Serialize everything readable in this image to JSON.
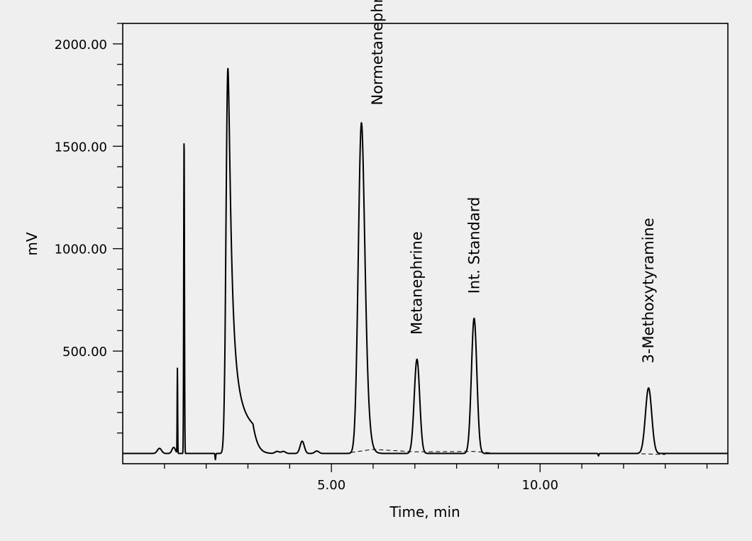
{
  "chart_data": {
    "type": "line",
    "title": "",
    "xlabel": "Time, min",
    "ylabel": "mV",
    "xlim": [
      0,
      14.5
    ],
    "ylim": [
      -50,
      2100
    ],
    "x_ticks": [
      {
        "value": 5,
        "label": "5.00"
      },
      {
        "value": 10,
        "label": "10.00"
      }
    ],
    "y_ticks": [
      {
        "value": 500,
        "label": "500.00"
      },
      {
        "value": 1000,
        "label": "1000.00"
      },
      {
        "value": 1500,
        "label": "1500.00"
      },
      {
        "value": 2000,
        "label": "2000.00"
      }
    ],
    "x_minor_step": 1,
    "y_minor_step": 100,
    "grid": false,
    "series": [
      {
        "style": "solid",
        "baseline": [
          [
            0,
            0
          ],
          [
            14.5,
            0
          ]
        ],
        "peaks": [
          {
            "t": 0.88,
            "h": 25,
            "w": 0.05
          },
          {
            "t": 1.22,
            "h": 30,
            "w": 0.04
          },
          {
            "t": 1.31,
            "h": 415,
            "w": 0.006
          },
          {
            "t": 1.47,
            "h": 1545,
            "w": 0.009
          },
          {
            "t": 2.22,
            "h": -30,
            "w": 0.008
          },
          {
            "t": 2.45,
            "h": -30,
            "w": 0.008
          },
          {
            "t": 2.52,
            "h": 1880,
            "w": 0.045,
            "tail": 0.22
          },
          {
            "t": 3.7,
            "h": 10,
            "w": 0.05
          },
          {
            "t": 3.85,
            "h": 10,
            "w": 0.05
          },
          {
            "t": 4.3,
            "h": 60,
            "w": 0.05
          },
          {
            "t": 4.65,
            "h": 12,
            "w": 0.05
          },
          {
            "t": 5.72,
            "h": 1615,
            "w": 0.075,
            "tail": 0.06
          },
          {
            "t": 7.05,
            "h": 460,
            "w": 0.065
          },
          {
            "t": 8.42,
            "h": 660,
            "w": 0.065
          },
          {
            "t": 11.4,
            "h": -12,
            "w": 0.01
          },
          {
            "t": 12.6,
            "h": 320,
            "w": 0.075
          }
        ]
      },
      {
        "style": "dashed",
        "points": [
          [
            5.3,
            0
          ],
          [
            6.0,
            20
          ],
          [
            7.0,
            8
          ],
          [
            8.4,
            10
          ],
          [
            9.0,
            0
          ],
          [
            12.2,
            0
          ],
          [
            13.0,
            -5
          ]
        ]
      }
    ],
    "annotations": [
      {
        "text": "Normetanephrine",
        "x": 6.1,
        "y": 1700
      },
      {
        "text": "Metanephrine",
        "x": 7.05,
        "y": 580
      },
      {
        "text": "Int. Standard",
        "x": 8.42,
        "y": 780
      },
      {
        "text": "3-Methoxytyramine",
        "x": 12.6,
        "y": 440
      }
    ]
  }
}
